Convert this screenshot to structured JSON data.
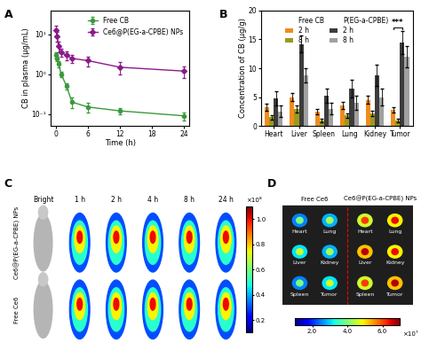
{
  "chart_data": [
    {
      "panel": "A",
      "type": "line",
      "x_label": "Time (h)",
      "y_label": "CB in plasma (μg/mL)",
      "log": "y",
      "grid": false,
      "legend": "upper right",
      "xlim": [
        -1,
        25
      ],
      "xticks": [
        0,
        6,
        12,
        18,
        24
      ],
      "ylim": [
        0.05,
        40
      ],
      "yticks": [
        {
          "value": 0.1,
          "label": "10⁻¹"
        },
        {
          "value": 1,
          "label": "10⁰"
        },
        {
          "value": 10,
          "label": "10¹"
        }
      ],
      "x": [
        0.083,
        0.25,
        0.5,
        1,
        2,
        3,
        6,
        12,
        24
      ],
      "series": [
        {
          "name": "Free CB",
          "color": "#3a9a3a",
          "marker": "circle",
          "line_style": "solid",
          "values": [
            3.0,
            2.5,
            1.8,
            1.0,
            0.5,
            0.2,
            0.15,
            0.12,
            0.09
          ],
          "errors": [
            0.5,
            0.4,
            0.3,
            0.15,
            0.08,
            0.06,
            0.04,
            0.02,
            0.02
          ]
        },
        {
          "name": "Ce6@P(EG-a-CPBE) NPs",
          "color": "#8b1a8b",
          "marker": "diamond",
          "line_style": "solid",
          "values": [
            13,
            9,
            5,
            3.5,
            3.0,
            2.5,
            2.2,
            1.5,
            1.2
          ],
          "errors": [
            4,
            2.5,
            1.5,
            0.8,
            0.7,
            0.6,
            0.6,
            0.5,
            0.4
          ]
        }
      ]
    },
    {
      "panel": "B",
      "type": "bar",
      "y_label": "Concentration of CB (μg/g)",
      "grid": false,
      "legend": "upper center",
      "ylim": [
        0,
        20
      ],
      "yticks": [
        0,
        5,
        10,
        15,
        20
      ],
      "categories": [
        "Heart",
        "Liver",
        "Spleen",
        "Lung",
        "Kidney",
        "Tumor"
      ],
      "series": [
        {
          "name": "2 h",
          "group": "Free CB",
          "color": "#f08c1e",
          "values": [
            3.2,
            5.0,
            2.5,
            3.6,
            4.5,
            2.8
          ],
          "errors": [
            0.6,
            0.7,
            0.5,
            0.6,
            0.7,
            0.5
          ]
        },
        {
          "name": "8 h",
          "group": "Free CB",
          "color": "#9a9a1e",
          "values": [
            1.5,
            3.0,
            1.0,
            1.8,
            2.2,
            1.0
          ],
          "errors": [
            0.4,
            0.6,
            0.3,
            0.4,
            0.5,
            0.3
          ]
        },
        {
          "name": "2 h",
          "group": "P(EG-a-CPBE)",
          "color": "#3c3c3c",
          "values": [
            4.8,
            14.2,
            5.2,
            6.5,
            8.8,
            14.5
          ],
          "errors": [
            1.2,
            1.5,
            1.2,
            1.5,
            1.8,
            2.0
          ]
        },
        {
          "name": "8 h",
          "group": "P(EG-a-CPBE)",
          "color": "#a0a0a0",
          "values": [
            2.5,
            8.8,
            3.0,
            4.0,
            5.0,
            12.0
          ],
          "errors": [
            1.0,
            1.2,
            1.0,
            1.2,
            1.5,
            1.8
          ]
        }
      ],
      "annotations": [
        {
          "text": "***",
          "category": "Tumor",
          "between": [
            0,
            2
          ]
        }
      ]
    },
    {
      "panel": "C",
      "type": "image",
      "columns": [
        "Bright",
        "1 h",
        "2 h",
        "4 h",
        "8 h",
        "24 h"
      ],
      "rows": [
        "Ce6@P(EG-a-CPBE) NPs",
        "Free Ce6"
      ],
      "colorbar": {
        "range": [
          0.1,
          1.1
        ],
        "ticks": [
          0.2,
          0.4,
          0.6,
          0.8,
          1.0
        ],
        "scale_label": "×10⁸"
      }
    },
    {
      "panel": "D",
      "type": "image",
      "groups": [
        {
          "name": "Free Ce6",
          "organs": [
            "Heart",
            "Lung",
            "Liver",
            "Kidney",
            "Spleen",
            "Tumor"
          ]
        },
        {
          "name": "Ce6@P(EG-a-CPBE) NPs",
          "organs": [
            "Heart",
            "Lung",
            "Liver",
            "Kidney",
            "Spleen",
            "Tumor"
          ]
        }
      ],
      "colorbar": {
        "range": [
          1.0,
          7.0
        ],
        "ticks": [
          2.0,
          4.0,
          6.0
        ],
        "scale_label": "×10⁷"
      }
    }
  ]
}
